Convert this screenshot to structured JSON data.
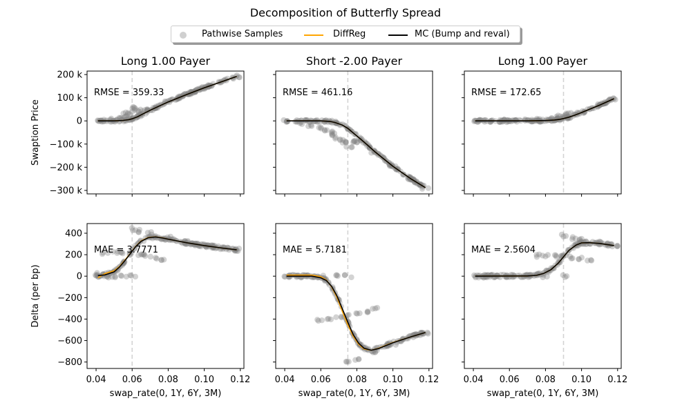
{
  "figure": {
    "title": "Decomposition of Butterfly Spread"
  },
  "legend": {
    "items": [
      {
        "label": "Pathwise Samples",
        "kind": "marker",
        "color": "#808080"
      },
      {
        "label": "DiffReg",
        "kind": "line",
        "color": "#ffa500"
      },
      {
        "label": "MC (Bump and reval)",
        "kind": "line",
        "color": "#000000"
      }
    ]
  },
  "chart_data": [
    {
      "type": "scatter",
      "title": "Long 1.00 Payer",
      "ylabel": "Swaption Price",
      "xlabel": "",
      "annotation": "RMSE = 359.33",
      "xlim": [
        0.035,
        0.122
      ],
      "ylim": [
        -315000,
        215000
      ],
      "yticks": [
        -300000,
        -200000,
        -100000,
        0,
        100000,
        200000
      ],
      "ytick_labels": [
        "−300 k",
        "−200 k",
        "−100 k",
        "0",
        "100 k",
        "200 k"
      ],
      "xticks": [
        0.04,
        0.06,
        0.08,
        0.1,
        0.12
      ],
      "xtick_labels": [],
      "strike_line": 0.06,
      "series": [
        {
          "name": "MC (Bump and reval)",
          "x": [
            0.041,
            0.05,
            0.055,
            0.058,
            0.06,
            0.063,
            0.066,
            0.07,
            0.075,
            0.08,
            0.09,
            0.1,
            0.11,
            0.118
          ],
          "values": [
            0,
            0,
            2000,
            5000,
            9000,
            18000,
            30000,
            46000,
            64000,
            82000,
            113000,
            143000,
            170000,
            192000
          ]
        },
        {
          "name": "DiffReg",
          "x": [
            0.041,
            0.05,
            0.055,
            0.058,
            0.06,
            0.063,
            0.066,
            0.07,
            0.075,
            0.08,
            0.09,
            0.1,
            0.11,
            0.118
          ],
          "values": [
            0,
            0,
            2000,
            5000,
            9000,
            18000,
            30000,
            46000,
            64000,
            82000,
            113000,
            143000,
            170000,
            192000
          ]
        }
      ],
      "samples": {
        "x": [
          0.041,
          0.045,
          0.05,
          0.052,
          0.055,
          0.057,
          0.058,
          0.06,
          0.062,
          0.065,
          0.068,
          0.07,
          0.08,
          0.09,
          0.1,
          0.11,
          0.118
        ],
        "y": [
          0,
          0,
          5000,
          10000,
          20000,
          30000,
          40000,
          55000,
          50000,
          45000,
          50000,
          50000,
          82000,
          113000,
          143000,
          170000,
          192000
        ]
      }
    },
    {
      "type": "scatter",
      "title": "Short -2.00 Payer",
      "ylabel": "",
      "xlabel": "",
      "annotation": "RMSE = 461.16",
      "xlim": [
        0.035,
        0.122
      ],
      "ylim": [
        -315000,
        215000
      ],
      "yticks": [
        -300000,
        -200000,
        -100000,
        0,
        100000,
        200000
      ],
      "ytick_labels": [],
      "xticks": [
        0.04,
        0.06,
        0.08,
        0.1,
        0.12
      ],
      "xtick_labels": [],
      "strike_line": 0.075,
      "series": [
        {
          "name": "MC (Bump and reval)",
          "x": [
            0.041,
            0.06,
            0.065,
            0.068,
            0.072,
            0.075,
            0.078,
            0.082,
            0.086,
            0.09,
            0.1,
            0.11,
            0.118
          ],
          "values": [
            0,
            0,
            -2000,
            -7000,
            -18000,
            -32000,
            -52000,
            -78000,
            -105000,
            -133000,
            -196000,
            -250000,
            -288000
          ]
        },
        {
          "name": "DiffReg",
          "x": [
            0.041,
            0.06,
            0.065,
            0.068,
            0.072,
            0.075,
            0.078,
            0.082,
            0.086,
            0.09,
            0.1,
            0.11,
            0.118
          ],
          "values": [
            0,
            0,
            -2000,
            -7000,
            -18000,
            -32000,
            -52000,
            -78000,
            -105000,
            -133000,
            -196000,
            -250000,
            -288000
          ]
        }
      ],
      "samples": {
        "x": [
          0.041,
          0.05,
          0.055,
          0.06,
          0.063,
          0.066,
          0.068,
          0.07,
          0.072,
          0.074,
          0.076,
          0.078,
          0.08,
          0.09,
          0.1,
          0.11,
          0.118
        ],
        "y": [
          0,
          -10000,
          -20000,
          -30000,
          -40000,
          -50000,
          -60000,
          -75000,
          -85000,
          -95000,
          -110000,
          -90000,
          -88000,
          -133000,
          -196000,
          -250000,
          -288000
        ]
      }
    },
    {
      "type": "scatter",
      "title": "Long 1.00 Payer",
      "ylabel": "",
      "xlabel": "",
      "annotation": "RMSE = 172.65",
      "xlim": [
        0.035,
        0.122
      ],
      "ylim": [
        -315000,
        215000
      ],
      "yticks": [
        -300000,
        -200000,
        -100000,
        0,
        100000,
        200000
      ],
      "ytick_labels": [],
      "xticks": [
        0.04,
        0.06,
        0.08,
        0.1,
        0.12
      ],
      "xtick_labels": [],
      "strike_line": 0.09,
      "series": [
        {
          "name": "MC (Bump and reval)",
          "x": [
            0.041,
            0.07,
            0.08,
            0.085,
            0.088,
            0.09,
            0.093,
            0.096,
            0.1,
            0.105,
            0.11,
            0.118
          ],
          "values": [
            0,
            0,
            1500,
            4000,
            7000,
            10000,
            16000,
            24000,
            36000,
            52000,
            68000,
            96000
          ]
        },
        {
          "name": "DiffReg",
          "x": [
            0.041,
            0.07,
            0.08,
            0.085,
            0.088,
            0.09,
            0.093,
            0.096,
            0.1,
            0.105,
            0.11,
            0.118
          ],
          "values": [
            0,
            0,
            1500,
            4000,
            7000,
            10000,
            16000,
            24000,
            36000,
            52000,
            68000,
            96000
          ]
        }
      ],
      "samples": {
        "x": [
          0.041,
          0.06,
          0.07,
          0.075,
          0.08,
          0.085,
          0.088,
          0.09,
          0.093,
          0.096,
          0.1,
          0.11,
          0.118
        ],
        "y": [
          0,
          0,
          3000,
          5000,
          8000,
          12000,
          18000,
          25000,
          30000,
          33000,
          36000,
          68000,
          96000
        ]
      }
    },
    {
      "type": "scatter",
      "title": "",
      "ylabel": "Delta (per bp)",
      "xlabel": "swap_rate(0, 1Y, 6Y, 3M)",
      "annotation": "MAE = 3.7771",
      "xlim": [
        0.035,
        0.122
      ],
      "ylim": [
        -860,
        490
      ],
      "yticks": [
        -800,
        -600,
        -400,
        -200,
        0,
        200,
        400
      ],
      "ytick_labels": [
        "−800",
        "−600",
        "−400",
        "−200",
        "0",
        "200",
        "400"
      ],
      "xticks": [
        0.04,
        0.06,
        0.08,
        0.1,
        0.12
      ],
      "xtick_labels": [
        "0.04",
        "0.06",
        "0.08",
        "0.10",
        "0.12"
      ],
      "strike_line": 0.06,
      "series": [
        {
          "name": "MC (Bump and reval)",
          "x": [
            0.041,
            0.045,
            0.05,
            0.053,
            0.056,
            0.059,
            0.062,
            0.065,
            0.069,
            0.073,
            0.077,
            0.08,
            0.09,
            0.1,
            0.11,
            0.118
          ],
          "values": [
            5,
            12,
            40,
            85,
            145,
            210,
            275,
            325,
            358,
            365,
            355,
            345,
            312,
            285,
            262,
            245
          ]
        },
        {
          "name": "DiffReg",
          "x": [
            0.041,
            0.045,
            0.05,
            0.053,
            0.056,
            0.059,
            0.062,
            0.065,
            0.069,
            0.073,
            0.077,
            0.08,
            0.09,
            0.1,
            0.11,
            0.118
          ],
          "values": [
            -15,
            25,
            50,
            90,
            150,
            212,
            278,
            328,
            360,
            366,
            356,
            345,
            312,
            285,
            262,
            245
          ]
        }
      ],
      "samples": {
        "x": [
          0.041,
          0.045,
          0.05,
          0.055,
          0.06,
          0.041,
          0.045,
          0.05,
          0.055,
          0.06,
          0.064,
          0.068,
          0.072,
          0.076,
          0.06,
          0.065,
          0.07,
          0.08,
          0.09,
          0.1,
          0.11,
          0.118
        ],
        "y": [
          0,
          0,
          0,
          0,
          0,
          20,
          220,
          220,
          215,
          210,
          205,
          195,
          175,
          155,
          440,
          420,
          400,
          355,
          315,
          285,
          262,
          245
        ]
      }
    },
    {
      "type": "scatter",
      "title": "",
      "ylabel": "",
      "xlabel": "swap_rate(0, 1Y, 6Y, 3M)",
      "annotation": "MAE = 5.7181",
      "xlim": [
        0.035,
        0.122
      ],
      "ylim": [
        -860,
        490
      ],
      "yticks": [
        -800,
        -600,
        -400,
        -200,
        0,
        200,
        400
      ],
      "ytick_labels": [],
      "xticks": [
        0.04,
        0.06,
        0.08,
        0.1,
        0.12
      ],
      "xtick_labels": [
        "0.04",
        "0.06",
        "0.08",
        "0.10",
        "0.12"
      ],
      "strike_line": 0.075,
      "series": [
        {
          "name": "MC (Bump and reval)",
          "x": [
            0.041,
            0.055,
            0.06,
            0.063,
            0.066,
            0.069,
            0.072,
            0.075,
            0.078,
            0.081,
            0.084,
            0.088,
            0.092,
            0.1,
            0.11,
            0.118
          ],
          "values": [
            0,
            0,
            -15,
            -40,
            -95,
            -185,
            -305,
            -430,
            -545,
            -625,
            -672,
            -690,
            -675,
            -620,
            -565,
            -525
          ]
        },
        {
          "name": "DiffReg",
          "x": [
            0.041,
            0.055,
            0.06,
            0.063,
            0.066,
            0.069,
            0.072,
            0.075,
            0.078,
            0.081,
            0.084,
            0.088,
            0.092,
            0.1,
            0.11,
            0.118
          ],
          "values": [
            10,
            10,
            -5,
            -35,
            -100,
            -200,
            -330,
            -455,
            -560,
            -635,
            -678,
            -690,
            -672,
            -618,
            -565,
            -525
          ]
        }
      ],
      "samples": {
        "x": [
          0.041,
          0.05,
          0.06,
          0.07,
          0.075,
          0.06,
          0.065,
          0.07,
          0.075,
          0.08,
          0.085,
          0.09,
          0.076,
          0.08,
          0.09,
          0.1,
          0.11,
          0.118
        ],
        "y": [
          0,
          0,
          0,
          0,
          0,
          -410,
          -400,
          -390,
          -370,
          -350,
          -330,
          -305,
          -800,
          -770,
          -700,
          -630,
          -570,
          -525
        ]
      }
    },
    {
      "type": "scatter",
      "title": "",
      "ylabel": "",
      "xlabel": "swap_rate(0, 1Y, 6Y, 3M)",
      "annotation": "MAE = 2.5604",
      "xlim": [
        0.035,
        0.122
      ],
      "ylim": [
        -860,
        490
      ],
      "yticks": [
        -800,
        -600,
        -400,
        -200,
        0,
        200,
        400
      ],
      "ytick_labels": [],
      "xticks": [
        0.04,
        0.06,
        0.08,
        0.1,
        0.12
      ],
      "xtick_labels": [
        "0.04",
        "0.06",
        "0.08",
        "0.10",
        "0.12"
      ],
      "strike_line": 0.09,
      "series": [
        {
          "name": "MC (Bump and reval)",
          "x": [
            0.041,
            0.07,
            0.075,
            0.079,
            0.083,
            0.087,
            0.09,
            0.093,
            0.097,
            0.1,
            0.104,
            0.11,
            0.118
          ],
          "values": [
            0,
            2,
            8,
            25,
            60,
            120,
            180,
            240,
            290,
            310,
            312,
            305,
            285
          ]
        },
        {
          "name": "DiffReg",
          "x": [
            0.041,
            0.07,
            0.075,
            0.079,
            0.083,
            0.087,
            0.09,
            0.093,
            0.097,
            0.1,
            0.104,
            0.11,
            0.118
          ],
          "values": [
            0,
            2,
            8,
            25,
            60,
            120,
            180,
            240,
            290,
            310,
            312,
            305,
            285
          ]
        }
      ],
      "samples": {
        "x": [
          0.041,
          0.05,
          0.06,
          0.07,
          0.08,
          0.09,
          0.075,
          0.08,
          0.085,
          0.09,
          0.095,
          0.1,
          0.105,
          0.09,
          0.095,
          0.1,
          0.11,
          0.118
        ],
        "y": [
          0,
          0,
          0,
          0,
          0,
          0,
          190,
          190,
          185,
          180,
          170,
          160,
          140,
          375,
          355,
          335,
          310,
          285
        ]
      }
    }
  ]
}
